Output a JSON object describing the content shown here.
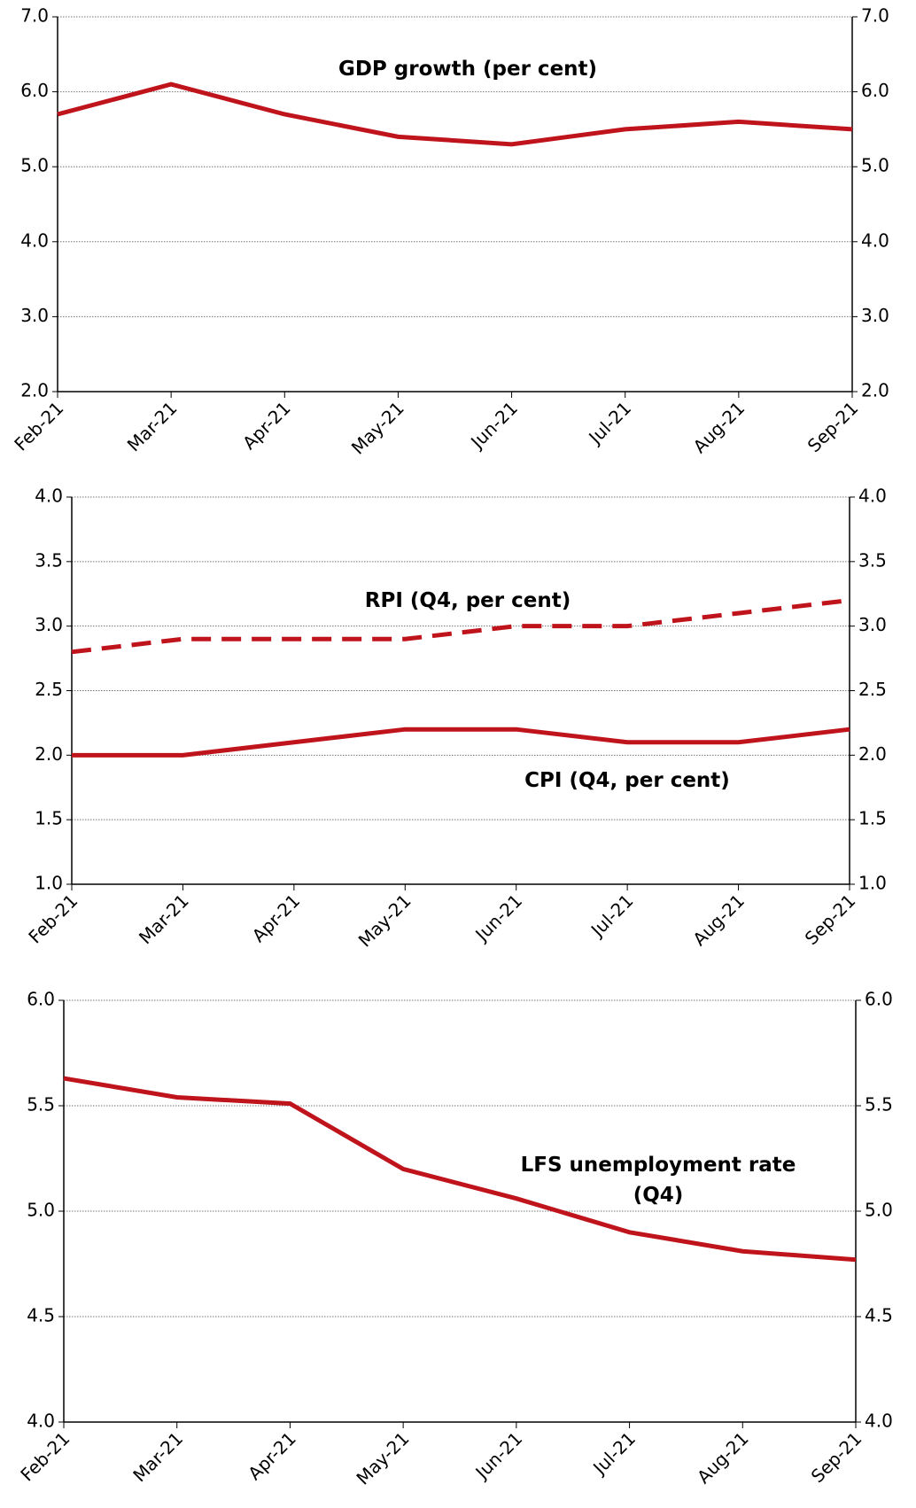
{
  "chart_data": [
    {
      "type": "line",
      "categories": [
        "Feb-21",
        "Mar-21",
        "Apr-21",
        "May-21",
        "Jun-21",
        "Jul-21",
        "Aug-21",
        "Sep-21"
      ],
      "series": [
        {
          "name": "GDP growth (per cent)",
          "color": "#c0141c",
          "dash": false,
          "values": [
            5.7,
            6.1,
            5.7,
            5.4,
            5.3,
            5.5,
            5.6,
            5.5
          ]
        }
      ],
      "ylim": [
        2,
        7
      ],
      "yticks": [
        {
          "value": 2,
          "label": "2.0"
        },
        {
          "value": 3,
          "label": "3.0"
        },
        {
          "value": 4,
          "label": "4.0"
        },
        {
          "value": 5,
          "label": "5.0"
        },
        {
          "value": 6,
          "label": "6.0"
        },
        {
          "value": 7,
          "label": "7.0"
        }
      ],
      "grid": true
    },
    {
      "type": "line",
      "categories": [
        "Feb-21",
        "Mar-21",
        "Apr-21",
        "May-21",
        "Jun-21",
        "Jul-21",
        "Aug-21",
        "Sep-21"
      ],
      "series": [
        {
          "name": "RPI (Q4, per cent)",
          "color": "#c0141c",
          "dash": true,
          "values": [
            2.8,
            2.9,
            2.9,
            2.9,
            3.0,
            3.0,
            3.1,
            3.2
          ]
        },
        {
          "name": "CPI (Q4, per cent)",
          "color": "#c0141c",
          "dash": false,
          "values": [
            2.0,
            2.0,
            2.1,
            2.2,
            2.2,
            2.1,
            2.1,
            2.2
          ]
        }
      ],
      "ylim": [
        1,
        4
      ],
      "yticks": [
        {
          "value": 1,
          "label": "1.0"
        },
        1.5,
        {
          "value": 2,
          "label": "2.0"
        },
        2.5,
        {
          "value": 3,
          "label": "3.0"
        },
        3.5,
        {
          "value": 4,
          "label": "4.0"
        }
      ],
      "grid": true
    },
    {
      "type": "line",
      "categories": [
        "Feb-21",
        "Mar-21",
        "Apr-21",
        "May-21",
        "Jun-21",
        "Jul-21",
        "Aug-21",
        "Sep-21"
      ],
      "series": [
        {
          "name": "LFS unemployment rate (Q4)",
          "color": "#c0141c",
          "dash": false,
          "values": [
            5.63,
            5.54,
            5.51,
            5.2,
            5.06,
            4.9,
            4.81,
            4.77
          ]
        }
      ],
      "ylim": [
        4,
        6
      ],
      "yticks": [
        {
          "value": 4,
          "label": "4.0"
        },
        4.5,
        {
          "value": 5,
          "label": "5.0"
        },
        5.5,
        {
          "value": 6,
          "label": "6.0"
        }
      ],
      "grid": true
    }
  ]
}
